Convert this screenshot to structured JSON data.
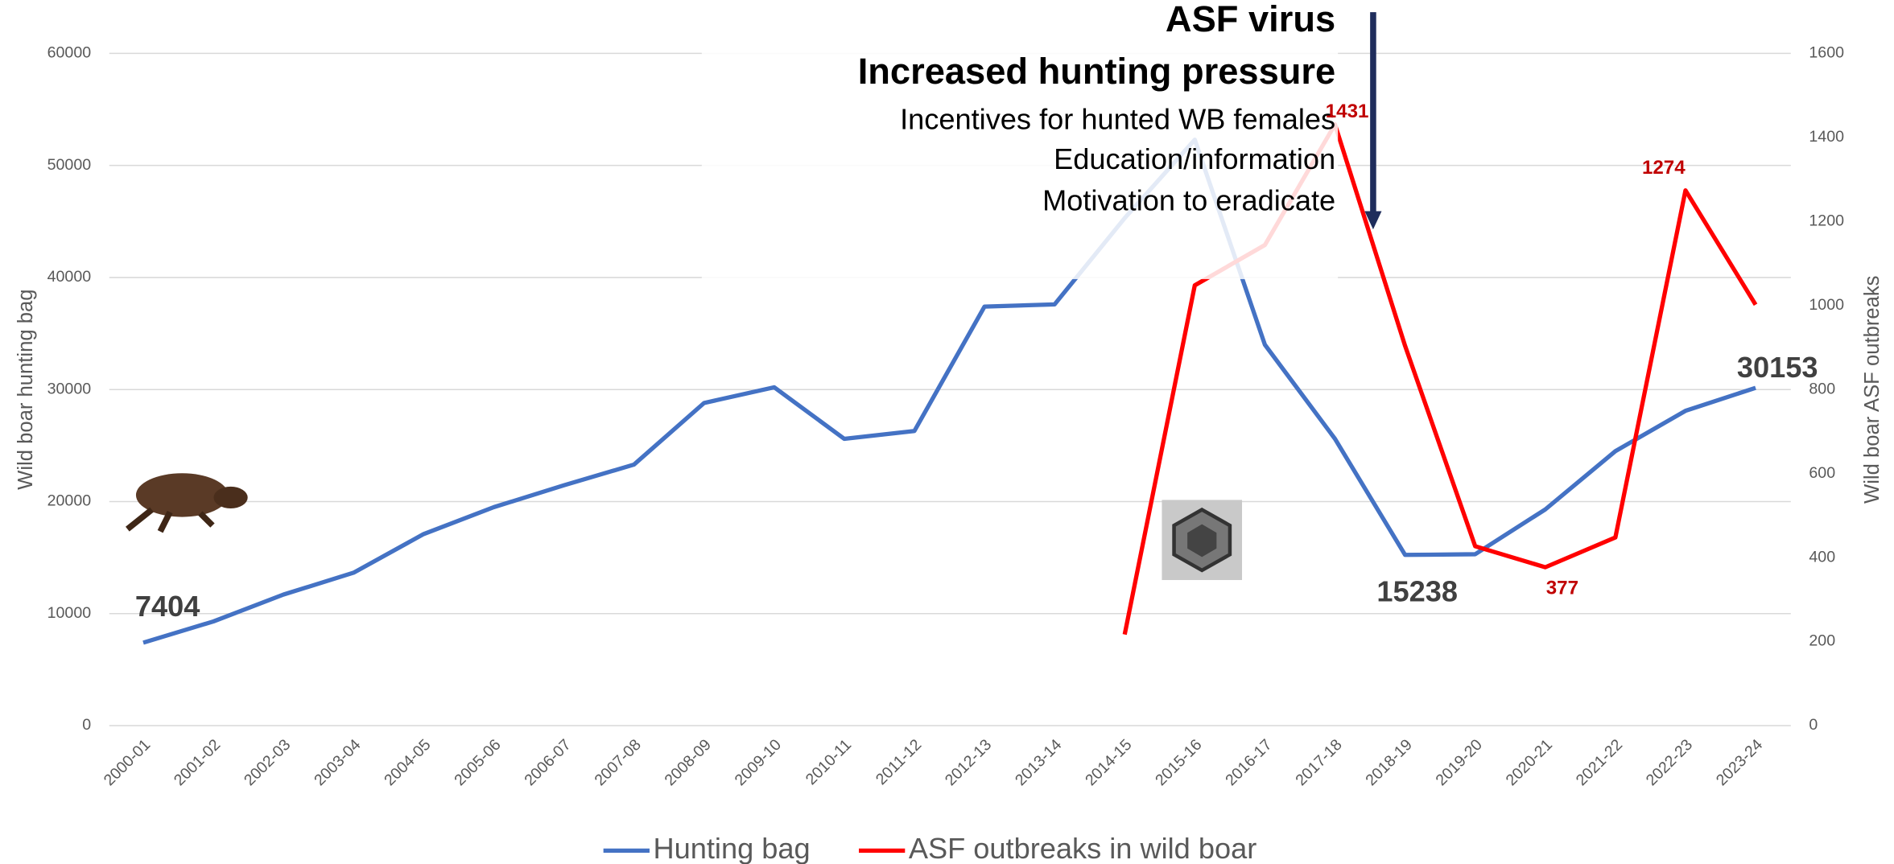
{
  "chart_data": {
    "type": "line",
    "y_label": "Wild boar hunting bag",
    "y2_label": "Wild boar ASF outbreaks",
    "annotations": [
      "ASF virus",
      "Increased hunting pressure",
      "Incentives for hunted WB females",
      "Education/information",
      "Motivation to eradicate"
    ],
    "categories": [
      "2000-01",
      "2001-02",
      "2002-03",
      "2003-04",
      "2004-05",
      "2005-06",
      "2006-07",
      "2007-08",
      "2008-09",
      "2009-10",
      "2010-11",
      "2011-12",
      "2012-13",
      "2013-14",
      "2014-15",
      "2015-16",
      "2016-17",
      "2017-18",
      "2018-19",
      "2019-20",
      "2020-21",
      "2021-22",
      "2022-23",
      "2023-24"
    ],
    "series": [
      {
        "name": "Hunting bag",
        "color": "#4472c4",
        "axis": "y",
        "values": [
          7404,
          9300,
          11700,
          13650,
          17100,
          19500,
          21450,
          23300,
          28800,
          30200,
          25600,
          26300,
          37400,
          37600,
          45300,
          52300,
          34000,
          25600,
          15238,
          15300,
          19300,
          24500,
          28100,
          30153
        ],
        "value_labels": [
          "7404",
          null,
          null,
          null,
          null,
          null,
          null,
          null,
          null,
          null,
          null,
          null,
          null,
          null,
          null,
          null,
          null,
          null,
          "15238",
          null,
          null,
          null,
          null,
          "30153"
        ]
      },
      {
        "name": "ASF outbreaks in wild boar",
        "color": "#ff0000",
        "axis": "y2",
        "values": [
          null,
          null,
          null,
          null,
          null,
          null,
          null,
          null,
          null,
          null,
          null,
          null,
          null,
          null,
          217,
          1048,
          1144,
          1431,
          904,
          427,
          377,
          448,
          1274,
          1002
        ],
        "value_labels": [
          null,
          null,
          null,
          null,
          null,
          null,
          null,
          null,
          null,
          null,
          null,
          null,
          null,
          null,
          null,
          null,
          null,
          "1431",
          null,
          null,
          "377",
          null,
          "1274",
          null
        ]
      }
    ],
    "ylim": [
      0,
      60000
    ],
    "yticks": [
      0,
      10000,
      20000,
      30000,
      40000,
      50000,
      60000
    ],
    "y2lim": [
      0,
      1600
    ],
    "y2ticks": [
      0,
      200,
      400,
      600,
      800,
      1000,
      1200,
      1400,
      1600
    ],
    "grid": true,
    "legend": "bottom"
  }
}
